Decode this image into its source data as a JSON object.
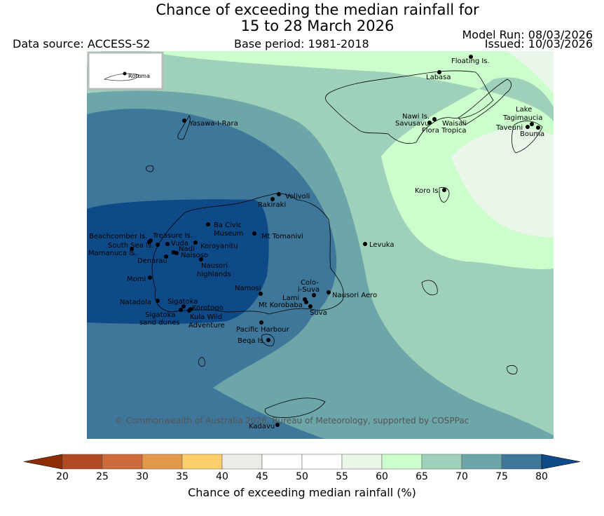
{
  "title": {
    "line1": "Chance of exceeding the median rainfall for",
    "line2": "15 to 28 March 2026"
  },
  "header": {
    "data_source": "Data source: ACCESS-S2",
    "base_period": "Base period: 1981-2018",
    "model_run": "Model Run: 08/03/2026",
    "issued": "Issued: 10/03/2026"
  },
  "inset": {
    "label": "Rotuma"
  },
  "places": {
    "floating": "Floating Is.",
    "labasa": "Labasa",
    "yasawa": "Yasawa-I-Rara",
    "nawi": "Nawi Is.",
    "savusavu": "Savusavu",
    "waisali": "Waisali",
    "flora": "Flora Tropica",
    "lake": "Lake",
    "tagimaucia": "Tagimaucia",
    "taveuni": "Taveuni",
    "bouma": "Bouma",
    "koro": "Koro Is.",
    "volivoli": "Volivoli",
    "rakiraki": "Rakiraki",
    "ba1": "Ba Civic",
    "ba2": "Museum",
    "tomanivi": "Mt Tomanivi",
    "beachcomber": "Beachcomber Is.",
    "treasure": "Treasure Is.",
    "southsea": "South Sea Is.",
    "vuda": "Vuda",
    "mamanuca": "Mamanuca Is.",
    "nadi": "Nadi",
    "koroyanitu": "Koroyanitu",
    "naisoso": "Naisoso",
    "denarau": "Denarau",
    "nausori1": "Nausori",
    "nausori2": "highlands",
    "levuka": "Levuka",
    "momi": "Momi",
    "namosi": "Namosi",
    "colo1": "Colo-",
    "colo2": "i-Suva",
    "lami": "Lami",
    "nausoriaero": "Nausori Aero",
    "natadola": "Natadola",
    "sigatoka": "Sigatoka",
    "korotogo": "Korotogo",
    "korobaba": "Mt Korobaba",
    "suva": "Suva",
    "sigdunes1": "Sigatoka",
    "sigdunes2": "sand dunes",
    "kula1": "Kula Wild",
    "kula2": "Adventure",
    "pacific": "Pacific Harbour",
    "beqa": "Beqa Is.",
    "kadavu": "Kadavu"
  },
  "copyright": "© Commonwealth of Australia 2026, Bureau of Meteorology, supported by COSPPac",
  "colorbar": {
    "title": "Chance of exceeding median rainfall (%)",
    "ticks": [
      "20",
      "25",
      "30",
      "35",
      "40",
      "45",
      "50",
      "55",
      "60",
      "65",
      "70",
      "75",
      "80"
    ],
    "colors": [
      "#8c2d04",
      "#b04a24",
      "#ce6b3a",
      "#e29a4a",
      "#fdcf6a",
      "#ecebe8",
      "#ffffff",
      "#ffffff",
      "#eaf6ea",
      "#ccfdcc",
      "#9fd1ba",
      "#6ca6a9",
      "#3e7799",
      "#0d4a87"
    ],
    "extend_low": "#8c2d04",
    "extend_high": "#0d4a87"
  }
}
